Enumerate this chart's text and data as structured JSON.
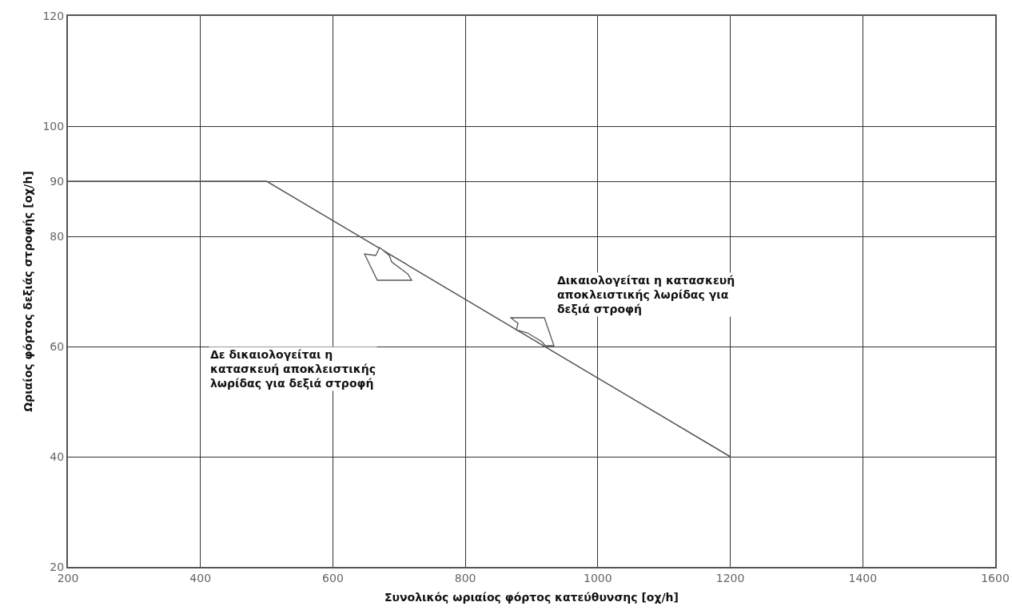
{
  "chart_data": {
    "type": "line",
    "xlabel": "Συνολικός ωριαίος φόρτος κατεύθυνσης [οχ/h]",
    "ylabel": "Ωριαίος φόρτος δεξιάς στροφής [οχ/h]",
    "x": [
      200,
      500,
      1200
    ],
    "series": [
      {
        "color": "#555555",
        "values": [
          90,
          90,
          40
        ]
      }
    ],
    "xlim": [
      200,
      1600
    ],
    "xticks": [
      200,
      400,
      600,
      800,
      1000,
      1200,
      1400,
      1600
    ],
    "ylim": [
      20,
      120
    ],
    "yticks": [
      20,
      40,
      60,
      80,
      90,
      100,
      120
    ],
    "grid": true,
    "marker": "none",
    "line_style": "solid",
    "annotations": [
      "Δε δικαιολογείται η\nκατασκευή αποκλειστικής\nλωρίδας για δεξιά στροφή",
      "Δικαιολογείται η κατασκευή\nαποκλειστικής λωρίδας για\nδεξιά στροφή"
    ]
  }
}
